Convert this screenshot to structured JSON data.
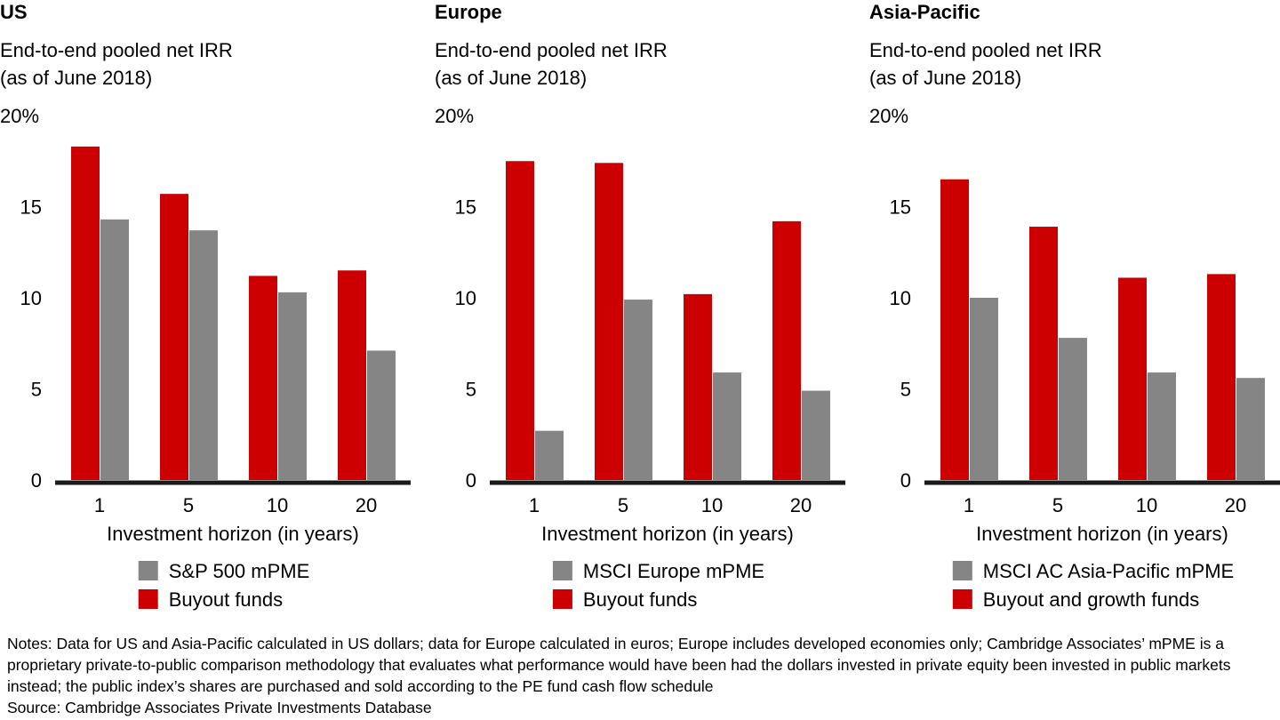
{
  "chart_data": [
    {
      "type": "bar",
      "title": "US",
      "subtitle": [
        "End-to-end pooled net IRR",
        "(as of June 2018)"
      ],
      "categories": [
        "1",
        "5",
        "10",
        "20"
      ],
      "xlabel": "Investment horizon (in years)",
      "series": [
        {
          "name": "Buyout funds",
          "color": "#cc0000",
          "values": [
            18.3,
            15.7,
            11.2,
            11.5
          ]
        },
        {
          "name": "S&P 500 mPME",
          "color": "#858585",
          "values": [
            14.3,
            13.7,
            10.3,
            7.1
          ]
        }
      ],
      "ylim": [
        0,
        20
      ],
      "yticks": [
        0,
        5,
        10,
        15,
        {
          "value": 20,
          "label": "20%"
        }
      ],
      "grid": false
    },
    {
      "type": "bar",
      "title": "Europe",
      "subtitle": [
        "End-to-end pooled net IRR",
        "(as of June 2018)"
      ],
      "categories": [
        "1",
        "5",
        "10",
        "20"
      ],
      "xlabel": "Investment horizon (in years)",
      "series": [
        {
          "name": "Buyout funds",
          "color": "#cc0000",
          "values": [
            17.5,
            17.4,
            10.2,
            14.2
          ]
        },
        {
          "name": "MSCI Europe mPME",
          "color": "#858585",
          "values": [
            2.7,
            9.9,
            5.9,
            4.9
          ]
        }
      ],
      "ylim": [
        0,
        20
      ],
      "yticks": [
        0,
        5,
        10,
        15,
        {
          "value": 20,
          "label": "20%"
        }
      ],
      "grid": false
    },
    {
      "type": "bar",
      "title": "Asia-Pacific",
      "subtitle": [
        "End-to-end pooled net IRR",
        "(as of June 2018)"
      ],
      "categories": [
        "1",
        "5",
        "10",
        "20"
      ],
      "xlabel": "Investment horizon (in years)",
      "series": [
        {
          "name": "Buyout and growth funds",
          "color": "#cc0000",
          "values": [
            16.5,
            13.9,
            11.1,
            11.3
          ]
        },
        {
          "name": "MSCI AC Asia-Pacific mPME",
          "color": "#858585",
          "values": [
            10.0,
            7.8,
            5.9,
            5.6
          ]
        }
      ],
      "ylim": [
        0,
        20
      ],
      "yticks": [
        0,
        5,
        10,
        15,
        {
          "value": 20,
          "label": "20%"
        }
      ],
      "grid": false
    }
  ],
  "notes": "Notes: Data for US and Asia-Pacific calculated in US dollars; data for Europe calculated in euros; Europe includes developed economies only; Cambridge Associates’ mPME is a proprietary private-to-public comparison methodology that evaluates what performance would have been had the dollars invested in private equity been invested in public markets instead; the public index’s shares are purchased and sold according to the PE fund cash flow schedule",
  "source": "Source: Cambridge Associates Private Investments Database"
}
